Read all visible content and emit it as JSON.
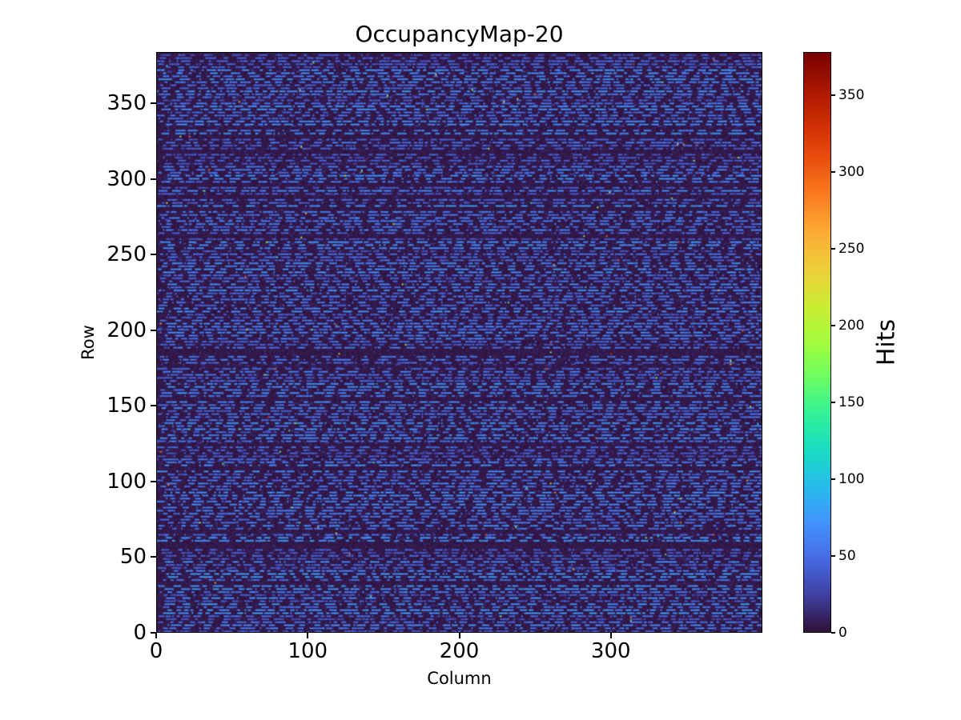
{
  "figure": {
    "background": "#ffffff",
    "text_color": "#000000"
  },
  "chart_data": {
    "type": "heatmap",
    "title": "OccupancyMap-20",
    "xlabel": "Column",
    "ylabel": "Row",
    "colorbar_label": "Hits",
    "cols": 400,
    "rows": 384,
    "xlim": [
      0,
      400
    ],
    "ylim": [
      0,
      384
    ],
    "x_ticks": [
      0,
      100,
      200,
      300
    ],
    "y_ticks": [
      0,
      50,
      100,
      150,
      200,
      250,
      300,
      350
    ],
    "colorbar_ticks": [
      0,
      50,
      100,
      150,
      200,
      250,
      300,
      350
    ],
    "vmin": 0,
    "vmax": 378,
    "colormap": "turbo",
    "colormap_stops": [
      {
        "t": 0.0,
        "color": "#30123b"
      },
      {
        "t": 0.0627,
        "color": "#4040a2"
      },
      {
        "t": 0.1255,
        "color": "#466be3"
      },
      {
        "t": 0.1882,
        "color": "#4294ff"
      },
      {
        "t": 0.251,
        "color": "#28bceb"
      },
      {
        "t": 0.3137,
        "color": "#18ddc2"
      },
      {
        "t": 0.3765,
        "color": "#32f298"
      },
      {
        "t": 0.4392,
        "color": "#6dfe62"
      },
      {
        "t": 0.502,
        "color": "#a4fc3c"
      },
      {
        "t": 0.5647,
        "color": "#cdec34"
      },
      {
        "t": 0.6275,
        "color": "#eecf3a"
      },
      {
        "t": 0.6902,
        "color": "#fdac34"
      },
      {
        "t": 0.7529,
        "color": "#fb7e21"
      },
      {
        "t": 0.8157,
        "color": "#eb500e"
      },
      {
        "t": 0.8784,
        "color": "#d02f05"
      },
      {
        "t": 0.9412,
        "color": "#a91601"
      },
      {
        "t": 1.0,
        "color": "#7a0403"
      }
    ],
    "pattern": {
      "description": "Mostly near-zero dark background; dashed horizontal streaks of hits (values ~22-88) on roughly every other row; rare isolated hot pixels up to the 378 maximum.",
      "seed": 20,
      "streak_even_row_prob": 0.93,
      "streak_odd_row_prob": 0.08,
      "background_max": 7,
      "speckle_prob": 0.04,
      "speckle_min": 8,
      "speckle_span": 12,
      "row_base_min": 22,
      "row_base_span": 38,
      "dash_len_max": 7,
      "dash_len_ext": 8,
      "dash_noise": 28,
      "density_min": 0.4,
      "density_span": 0.5,
      "sparse_row_base": 12,
      "hot_prob": 0.0007,
      "hot_min": 110
    }
  }
}
